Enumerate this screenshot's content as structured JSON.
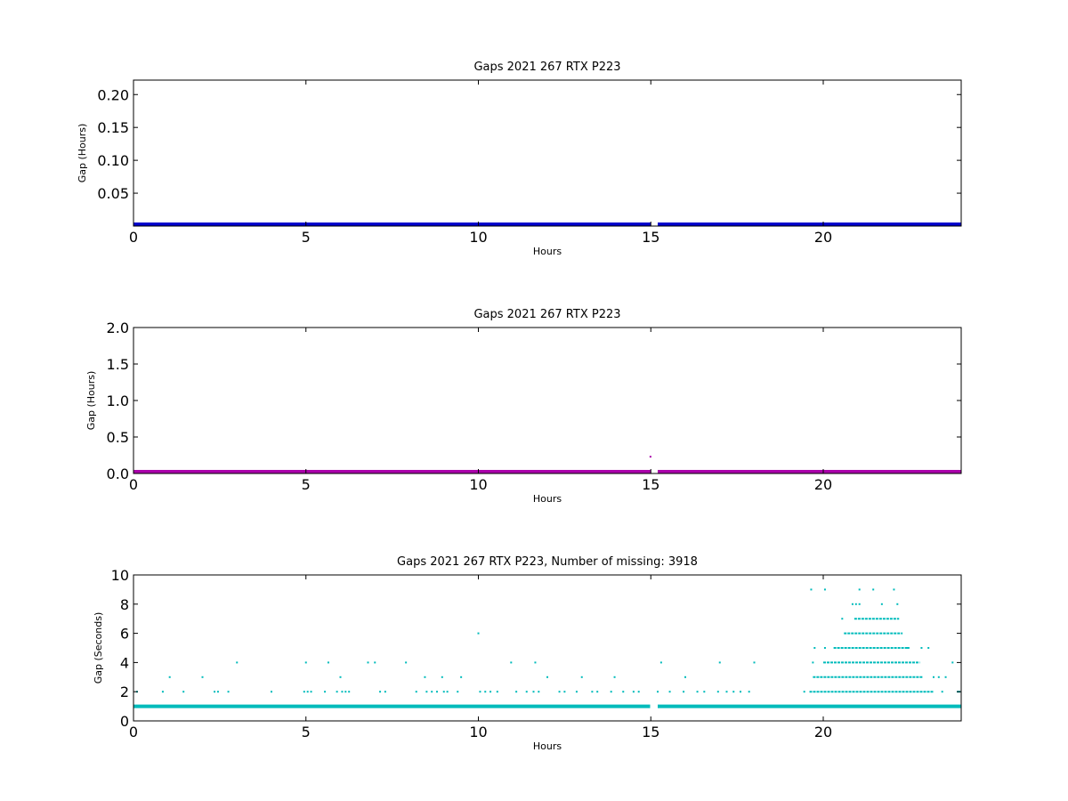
{
  "chart_data": [
    {
      "type": "scatter",
      "title": "Gaps 2021 267 RTX  P223",
      "xlabel": "Hours",
      "ylabel": "Gap (Hours)",
      "xlim": [
        0,
        24
      ],
      "ylim": [
        0,
        0.222
      ],
      "x_ticks": [
        0,
        5,
        10,
        15,
        20
      ],
      "y_ticks": [
        0.05,
        0.1,
        0.15,
        0.2
      ],
      "x_tick_labels": [
        "0",
        "5",
        "10",
        "15",
        "20"
      ],
      "y_tick_labels": [
        "0.05",
        "0.10",
        "0.15",
        "0.20"
      ],
      "grid": false,
      "color": "#0000cc",
      "series": [
        {
          "baseline": {
            "y": 0.0003,
            "segments": [
              [
                0,
                15.0
              ],
              [
                15.2,
                24
              ]
            ]
          },
          "points": [
            {
              "x": 20.8,
              "y": 0.0017
            },
            {
              "x": 21.3,
              "y": 0.0017
            },
            {
              "x": 21.45,
              "y": 0.0017
            },
            {
              "x": 22.05,
              "y": 0.0025
            }
          ]
        }
      ]
    },
    {
      "type": "scatter",
      "title": "Gaps 2021 267 RTX  P223",
      "xlabel": "Hours",
      "ylabel": "Gap (Hours)",
      "xlim": [
        0,
        24
      ],
      "ylim": [
        0,
        2.0
      ],
      "x_ticks": [
        0,
        5,
        10,
        15,
        20
      ],
      "y_ticks": [
        0.0,
        0.5,
        1.0,
        1.5,
        2.0
      ],
      "x_tick_labels": [
        "0",
        "5",
        "10",
        "15",
        "20"
      ],
      "y_tick_labels": [
        "0.0",
        "0.5",
        "1.0",
        "1.5",
        "2.0"
      ],
      "grid": false,
      "color": "#aa00aa",
      "series": [
        {
          "baseline": {
            "y": 0.0003,
            "segments": [
              [
                0,
                15.0
              ],
              [
                15.2,
                24
              ]
            ]
          },
          "points": [
            {
              "x": 14.99,
              "y": 0.23
            }
          ]
        }
      ]
    },
    {
      "type": "scatter",
      "title": "Gaps 2021 267 RTX  P223, Number of missing: 3918",
      "xlabel": "Hours",
      "ylabel": "Gap (Seconds)",
      "xlim": [
        0,
        24
      ],
      "ylim": [
        0,
        10
      ],
      "x_ticks": [
        0,
        5,
        10,
        15,
        20
      ],
      "y_ticks": [
        0,
        2,
        4,
        6,
        8,
        10
      ],
      "x_tick_labels": [
        "0",
        "5",
        "10",
        "15",
        "20"
      ],
      "y_tick_labels": [
        "0",
        "2",
        "4",
        "6",
        "8",
        "10"
      ],
      "grid": false,
      "color": "#00bbbb",
      "series": [
        {
          "baseline": {
            "y": 1,
            "segments": [
              [
                0,
                14.98
              ],
              [
                15.2,
                24
              ]
            ]
          },
          "dense_runs": [
            {
              "y": 2,
              "segments": [
                [
                  19.6,
                  23.2
                ]
              ]
            },
            {
              "y": 3,
              "segments": [
                [
                  19.7,
                  22.9
                ]
              ]
            },
            {
              "y": 4,
              "segments": [
                [
                  20.0,
                  22.8
                ]
              ]
            },
            {
              "y": 5,
              "segments": [
                [
                  20.3,
                  22.5
                ]
              ]
            },
            {
              "y": 6,
              "segments": [
                [
                  20.6,
                  22.3
                ]
              ]
            },
            {
              "y": 7,
              "segments": [
                [
                  20.9,
                  22.2
                ]
              ]
            }
          ],
          "points": [
            {
              "x": 0.1,
              "y": 2
            },
            {
              "x": 0.85,
              "y": 2
            },
            {
              "x": 1.05,
              "y": 3
            },
            {
              "x": 1.45,
              "y": 2
            },
            {
              "x": 2.0,
              "y": 3
            },
            {
              "x": 2.35,
              "y": 2
            },
            {
              "x": 2.45,
              "y": 2
            },
            {
              "x": 2.75,
              "y": 2
            },
            {
              "x": 3.0,
              "y": 4
            },
            {
              "x": 4.0,
              "y": 2
            },
            {
              "x": 4.95,
              "y": 2
            },
            {
              "x": 5.05,
              "y": 2
            },
            {
              "x": 5.15,
              "y": 2
            },
            {
              "x": 5.0,
              "y": 4
            },
            {
              "x": 5.55,
              "y": 2
            },
            {
              "x": 5.65,
              "y": 4
            },
            {
              "x": 5.9,
              "y": 2
            },
            {
              "x": 6.0,
              "y": 3
            },
            {
              "x": 6.05,
              "y": 2
            },
            {
              "x": 6.15,
              "y": 2
            },
            {
              "x": 6.25,
              "y": 2
            },
            {
              "x": 6.8,
              "y": 4
            },
            {
              "x": 7.0,
              "y": 4
            },
            {
              "x": 7.15,
              "y": 2
            },
            {
              "x": 7.3,
              "y": 2
            },
            {
              "x": 7.9,
              "y": 4
            },
            {
              "x": 8.2,
              "y": 2
            },
            {
              "x": 8.45,
              "y": 3
            },
            {
              "x": 8.5,
              "y": 2
            },
            {
              "x": 8.65,
              "y": 2
            },
            {
              "x": 8.8,
              "y": 2
            },
            {
              "x": 8.95,
              "y": 3
            },
            {
              "x": 9.0,
              "y": 2
            },
            {
              "x": 9.1,
              "y": 2
            },
            {
              "x": 9.4,
              "y": 2
            },
            {
              "x": 9.5,
              "y": 3
            },
            {
              "x": 10.0,
              "y": 6
            },
            {
              "x": 10.05,
              "y": 2
            },
            {
              "x": 10.2,
              "y": 2
            },
            {
              "x": 10.35,
              "y": 2
            },
            {
              "x": 10.55,
              "y": 2
            },
            {
              "x": 10.95,
              "y": 4
            },
            {
              "x": 11.1,
              "y": 2
            },
            {
              "x": 11.4,
              "y": 2
            },
            {
              "x": 11.6,
              "y": 2
            },
            {
              "x": 11.65,
              "y": 4
            },
            {
              "x": 11.75,
              "y": 2
            },
            {
              "x": 12.0,
              "y": 3
            },
            {
              "x": 12.35,
              "y": 2
            },
            {
              "x": 12.5,
              "y": 2
            },
            {
              "x": 12.85,
              "y": 2
            },
            {
              "x": 13.0,
              "y": 3
            },
            {
              "x": 13.3,
              "y": 2
            },
            {
              "x": 13.45,
              "y": 2
            },
            {
              "x": 13.85,
              "y": 2
            },
            {
              "x": 13.95,
              "y": 3
            },
            {
              "x": 14.2,
              "y": 2
            },
            {
              "x": 14.5,
              "y": 2
            },
            {
              "x": 14.65,
              "y": 2
            },
            {
              "x": 15.2,
              "y": 2
            },
            {
              "x": 15.3,
              "y": 4
            },
            {
              "x": 15.55,
              "y": 2
            },
            {
              "x": 15.95,
              "y": 2
            },
            {
              "x": 16.0,
              "y": 3
            },
            {
              "x": 16.35,
              "y": 2
            },
            {
              "x": 16.55,
              "y": 2
            },
            {
              "x": 16.95,
              "y": 2
            },
            {
              "x": 17.0,
              "y": 4
            },
            {
              "x": 17.2,
              "y": 2
            },
            {
              "x": 17.4,
              "y": 2
            },
            {
              "x": 17.6,
              "y": 2
            },
            {
              "x": 17.85,
              "y": 2
            },
            {
              "x": 18.0,
              "y": 4
            },
            {
              "x": 19.45,
              "y": 2
            },
            {
              "x": 19.65,
              "y": 9
            },
            {
              "x": 19.7,
              "y": 4
            },
            {
              "x": 19.75,
              "y": 5
            },
            {
              "x": 20.05,
              "y": 5
            },
            {
              "x": 20.05,
              "y": 9
            },
            {
              "x": 20.55,
              "y": 7
            },
            {
              "x": 20.85,
              "y": 8
            },
            {
              "x": 20.95,
              "y": 8
            },
            {
              "x": 21.05,
              "y": 9
            },
            {
              "x": 21.05,
              "y": 8
            },
            {
              "x": 21.45,
              "y": 9
            },
            {
              "x": 21.7,
              "y": 8
            },
            {
              "x": 22.05,
              "y": 9
            },
            {
              "x": 22.15,
              "y": 8
            },
            {
              "x": 22.45,
              "y": 5
            },
            {
              "x": 22.85,
              "y": 5
            },
            {
              "x": 23.05,
              "y": 5
            },
            {
              "x": 23.2,
              "y": 3
            },
            {
              "x": 23.35,
              "y": 3
            },
            {
              "x": 23.45,
              "y": 2
            },
            {
              "x": 23.55,
              "y": 3
            },
            {
              "x": 23.75,
              "y": 4
            },
            {
              "x": 23.9,
              "y": 2
            },
            {
              "x": 23.95,
              "y": 2
            }
          ]
        }
      ]
    }
  ]
}
